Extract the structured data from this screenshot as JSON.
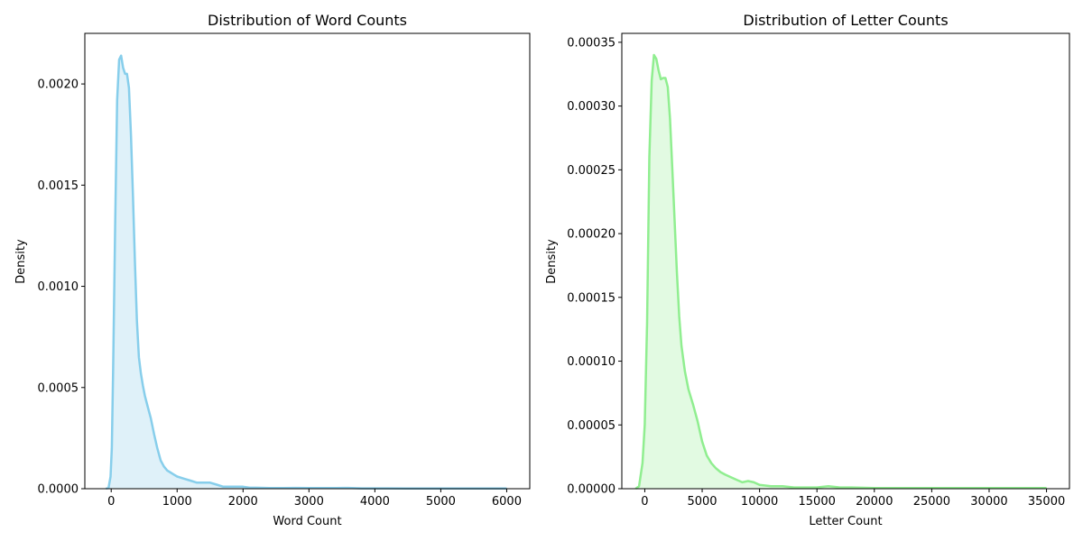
{
  "chart_data": [
    {
      "type": "area",
      "title": "Distribution of Word Counts",
      "xlabel": "Word Count",
      "ylabel": "Density",
      "xlim": [
        -400,
        6350
      ],
      "ylim": [
        0,
        0.00225
      ],
      "xticks": [
        0,
        1000,
        2000,
        3000,
        4000,
        5000,
        6000
      ],
      "xtick_labels": [
        "0",
        "1000",
        "2000",
        "3000",
        "4000",
        "5000",
        "6000"
      ],
      "yticks": [
        0,
        0.0005,
        0.001,
        0.0015,
        0.002
      ],
      "ytick_labels": [
        "0.0000",
        "0.0005",
        "0.0010",
        "0.0015",
        "0.0020"
      ],
      "grid": false,
      "color": "#87ceeb",
      "fill_color": "#dff1f9",
      "series": [
        {
          "x": [
            -80,
            -40,
            -10,
            10,
            30,
            60,
            90,
            120,
            150,
            180,
            210,
            240,
            270,
            300,
            330,
            360,
            390,
            420,
            450,
            480,
            510,
            550,
            600,
            650,
            700,
            750,
            800,
            850,
            900,
            950,
            1000,
            1100,
            1200,
            1300,
            1400,
            1500,
            1600,
            1700,
            1800,
            1900,
            2000,
            2100,
            2200,
            2400,
            2600,
            2800,
            3000,
            3200,
            3400,
            3600,
            3800,
            4000,
            4200,
            4500,
            5000,
            5500,
            6000
          ],
          "y": [
            0,
            5e-06,
            6e-05,
            0.0002,
            0.0006,
            0.0013,
            0.00192,
            0.00212,
            0.00214,
            0.00208,
            0.00205,
            0.00205,
            0.00198,
            0.00175,
            0.00145,
            0.00112,
            0.00083,
            0.00065,
            0.00057,
            0.00051,
            0.00046,
            0.00041,
            0.00035,
            0.00027,
            0.0002,
            0.00014,
            0.00011,
            9e-05,
            8e-05,
            7e-05,
            6e-05,
            5e-05,
            4e-05,
            3e-05,
            3e-05,
            3e-05,
            2e-05,
            1e-05,
            1e-05,
            1e-05,
            1e-05,
            5e-06,
            5e-06,
            3e-06,
            3e-06,
            4e-06,
            3e-06,
            3e-06,
            3e-06,
            4e-06,
            2e-06,
            2e-06,
            2e-06,
            1e-06,
            1e-06,
            1e-06,
            1e-06
          ]
        }
      ]
    },
    {
      "type": "area",
      "title": "Distribution of Letter Counts",
      "xlabel": "Letter Count",
      "ylabel": "Density",
      "xlim": [
        -2000,
        37000
      ],
      "ylim": [
        0,
        0.000357
      ],
      "xticks": [
        0,
        5000,
        10000,
        15000,
        20000,
        25000,
        30000,
        35000
      ],
      "xtick_labels": [
        "0",
        "5000",
        "10000",
        "15000",
        "20000",
        "25000",
        "30000",
        "35000"
      ],
      "yticks": [
        0,
        5e-05,
        0.0001,
        0.00015,
        0.0002,
        0.00025,
        0.0003,
        0.00035
      ],
      "ytick_labels": [
        "0.00000",
        "0.00005",
        "0.00010",
        "0.00015",
        "0.00020",
        "0.00025",
        "0.00030",
        "0.00035"
      ],
      "grid": false,
      "color": "#90ee90",
      "fill_color": "#e2fae2",
      "series": [
        {
          "x": [
            -800,
            -500,
            -200,
            0,
            200,
            400,
            600,
            800,
            1000,
            1200,
            1400,
            1600,
            1800,
            2000,
            2200,
            2400,
            2600,
            2800,
            3000,
            3200,
            3500,
            3800,
            4200,
            4600,
            5000,
            5400,
            5800,
            6200,
            6600,
            7000,
            7500,
            8000,
            8500,
            9000,
            9500,
            10000,
            11000,
            12000,
            13000,
            14000,
            15000,
            16000,
            17000,
            18000,
            20000,
            22000,
            24000,
            26000,
            28000,
            30000,
            32000,
            34000,
            35000
          ],
          "y": [
            0,
            2e-06,
            2e-05,
            5e-05,
            0.00013,
            0.00026,
            0.00032,
            0.00034,
            0.000337,
            0.000328,
            0.000321,
            0.000322,
            0.000322,
            0.000315,
            0.00029,
            0.00025,
            0.00021,
            0.00017,
            0.000135,
            0.000112,
            9.2e-05,
            7.8e-05,
            6.6e-05,
            5.3e-05,
            3.7e-05,
            2.6e-05,
            2e-05,
            1.6e-05,
            1.3e-05,
            1.1e-05,
            9e-06,
            7e-06,
            5e-06,
            6e-06,
            5e-06,
            3e-06,
            2e-06,
            2e-06,
            1e-06,
            1e-06,
            1e-06,
            2e-06,
            1e-06,
            1e-06,
            5e-07,
            5e-07,
            5e-07,
            5e-07,
            5e-07,
            5e-07,
            5e-07,
            5e-07,
            5e-07
          ]
        }
      ]
    }
  ]
}
